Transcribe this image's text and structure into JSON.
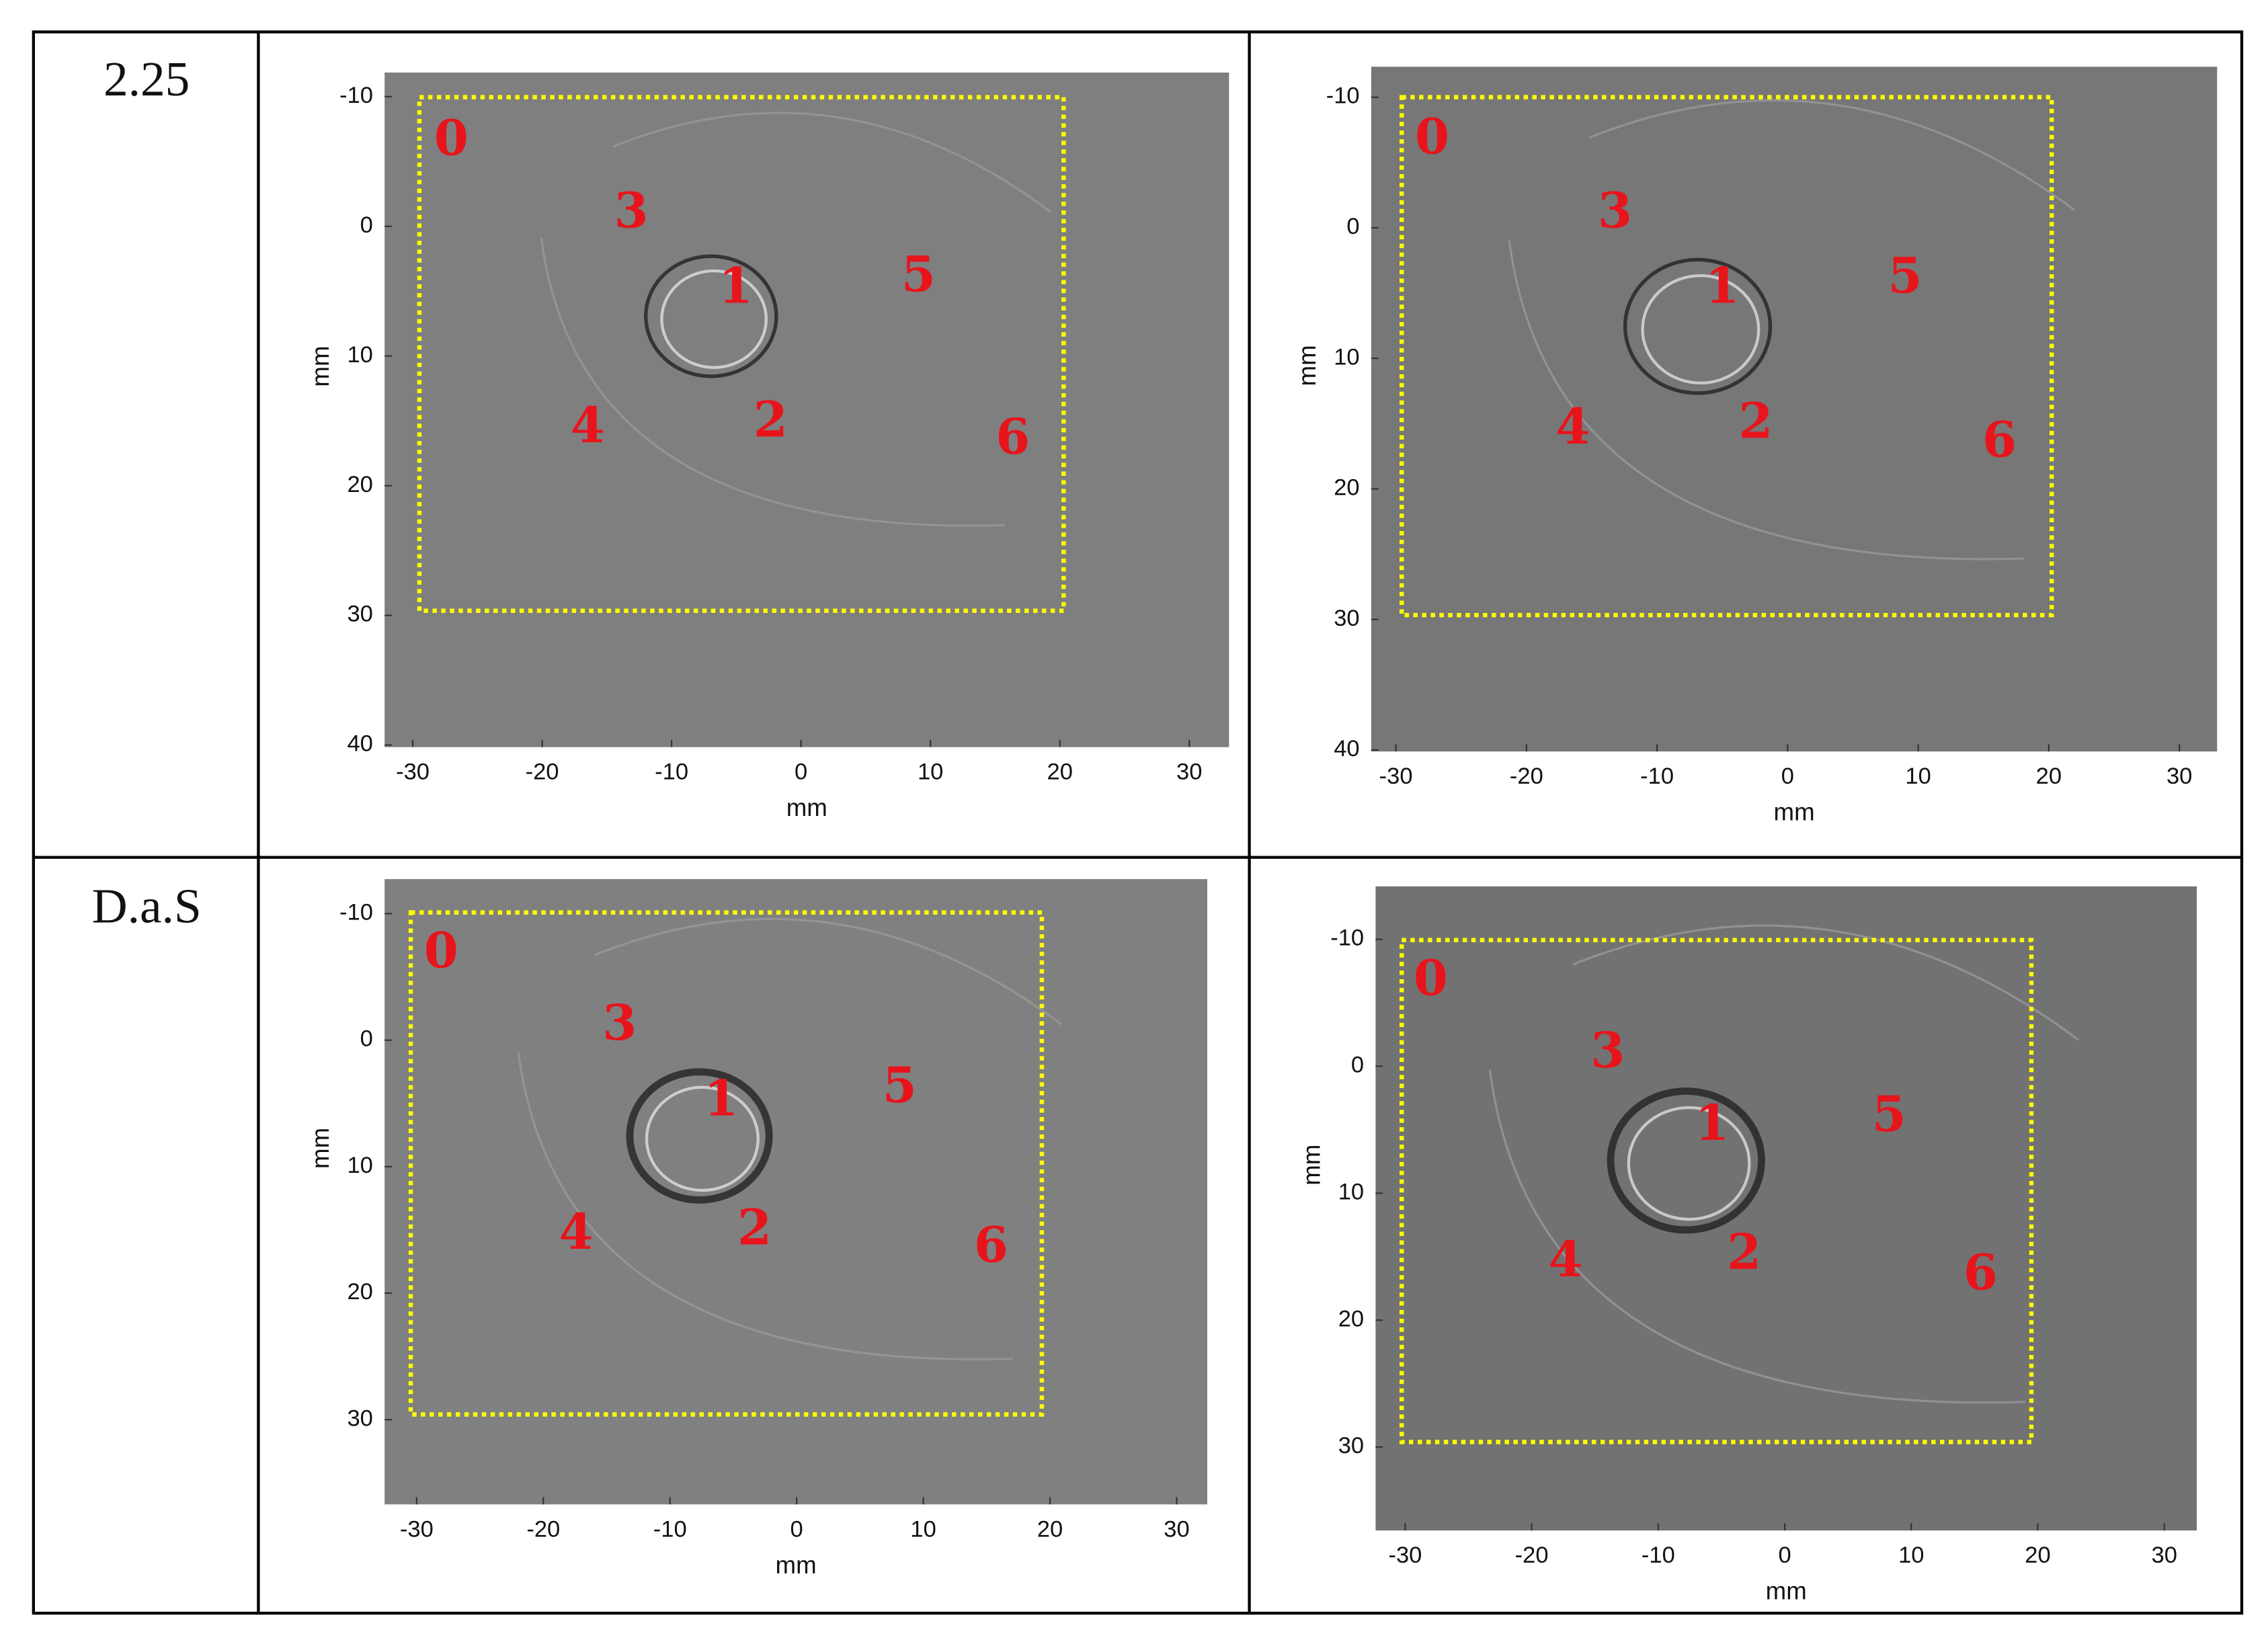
{
  "table": {
    "rows": [
      {
        "label": "2.25",
        "panels": [
          {
            "x_label": "mm",
            "y_label": "mm",
            "x_ticks": [
              -30,
              -20,
              -10,
              0,
              10,
              20,
              30
            ],
            "y_ticks": [
              -10,
              0,
              10,
              20,
              30,
              40
            ],
            "markers": [
              "0",
              "1",
              "2",
              "3",
              "4",
              "5",
              "6"
            ]
          },
          {
            "x_label": "mm",
            "y_label": "mm",
            "x_ticks": [
              -30,
              -20,
              -10,
              0,
              10,
              20,
              30
            ],
            "y_ticks": [
              -10,
              0,
              10,
              20,
              30,
              40
            ],
            "markers": [
              "0",
              "1",
              "2",
              "3",
              "4",
              "5",
              "6"
            ]
          }
        ]
      },
      {
        "label": "D.a.S",
        "panels": [
          {
            "x_label": "mm",
            "y_label": "mm",
            "x_ticks": [
              -30,
              -20,
              -10,
              0,
              10,
              20,
              30
            ],
            "y_ticks": [
              -10,
              0,
              10,
              20,
              30
            ],
            "markers": [
              "0",
              "1",
              "2",
              "3",
              "4",
              "5",
              "6"
            ]
          },
          {
            "x_label": "mm",
            "y_label": "mm",
            "x_ticks": [
              -30,
              -20,
              -10,
              0,
              10,
              20,
              30
            ],
            "y_ticks": [
              -10,
              0,
              10,
              20,
              30
            ],
            "markers": [
              "0",
              "1",
              "2",
              "3",
              "4",
              "5",
              "6"
            ]
          }
        ]
      }
    ]
  }
}
